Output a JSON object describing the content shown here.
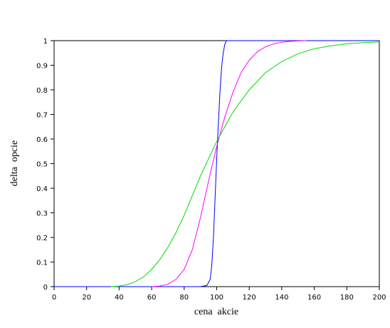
{
  "chart_data": {
    "type": "line",
    "xlabel": "cena  akcie",
    "ylabel": "delta  opcie",
    "xlim": [
      0,
      200
    ],
    "xticks": [
      0,
      20,
      40,
      60,
      80,
      100,
      120,
      140,
      160,
      180,
      200
    ],
    "ylim": [
      0,
      1
    ],
    "yticks": [
      0,
      0.1,
      0.2,
      0.3,
      0.4,
      0.5,
      0.6,
      0.7,
      0.8,
      0.9,
      1
    ],
    "series": [
      {
        "color": "#0000ff",
        "x": [
          0,
          90,
          94,
          96,
          97,
          98,
          99,
          100,
          101,
          102,
          103,
          104,
          105,
          106,
          200
        ],
        "values": [
          0,
          0,
          0.005,
          0.03,
          0.09,
          0.2,
          0.36,
          0.52,
          0.66,
          0.79,
          0.89,
          0.95,
          0.985,
          1,
          1
        ]
      },
      {
        "color": "#ff00ff",
        "x": [
          60,
          65,
          70,
          75,
          80,
          85,
          90,
          95,
          100,
          105,
          110,
          115,
          120,
          125,
          130,
          135,
          140,
          145,
          150,
          155
        ],
        "values": [
          0,
          0.002,
          0.01,
          0.03,
          0.07,
          0.15,
          0.28,
          0.43,
          0.57,
          0.69,
          0.79,
          0.87,
          0.92,
          0.955,
          0.975,
          0.987,
          0.994,
          0.997,
          0.999,
          1
        ]
      },
      {
        "color": "#00dd00",
        "x": [
          35,
          40,
          45,
          50,
          55,
          60,
          65,
          70,
          75,
          80,
          85,
          90,
          95,
          100,
          105,
          110,
          120,
          130,
          140,
          150,
          160,
          170,
          180,
          190,
          200
        ],
        "values": [
          0,
          0.002,
          0.008,
          0.02,
          0.04,
          0.07,
          0.11,
          0.16,
          0.22,
          0.29,
          0.37,
          0.45,
          0.52,
          0.59,
          0.65,
          0.71,
          0.8,
          0.87,
          0.915,
          0.947,
          0.967,
          0.979,
          0.987,
          0.992,
          0.995
        ]
      }
    ]
  }
}
